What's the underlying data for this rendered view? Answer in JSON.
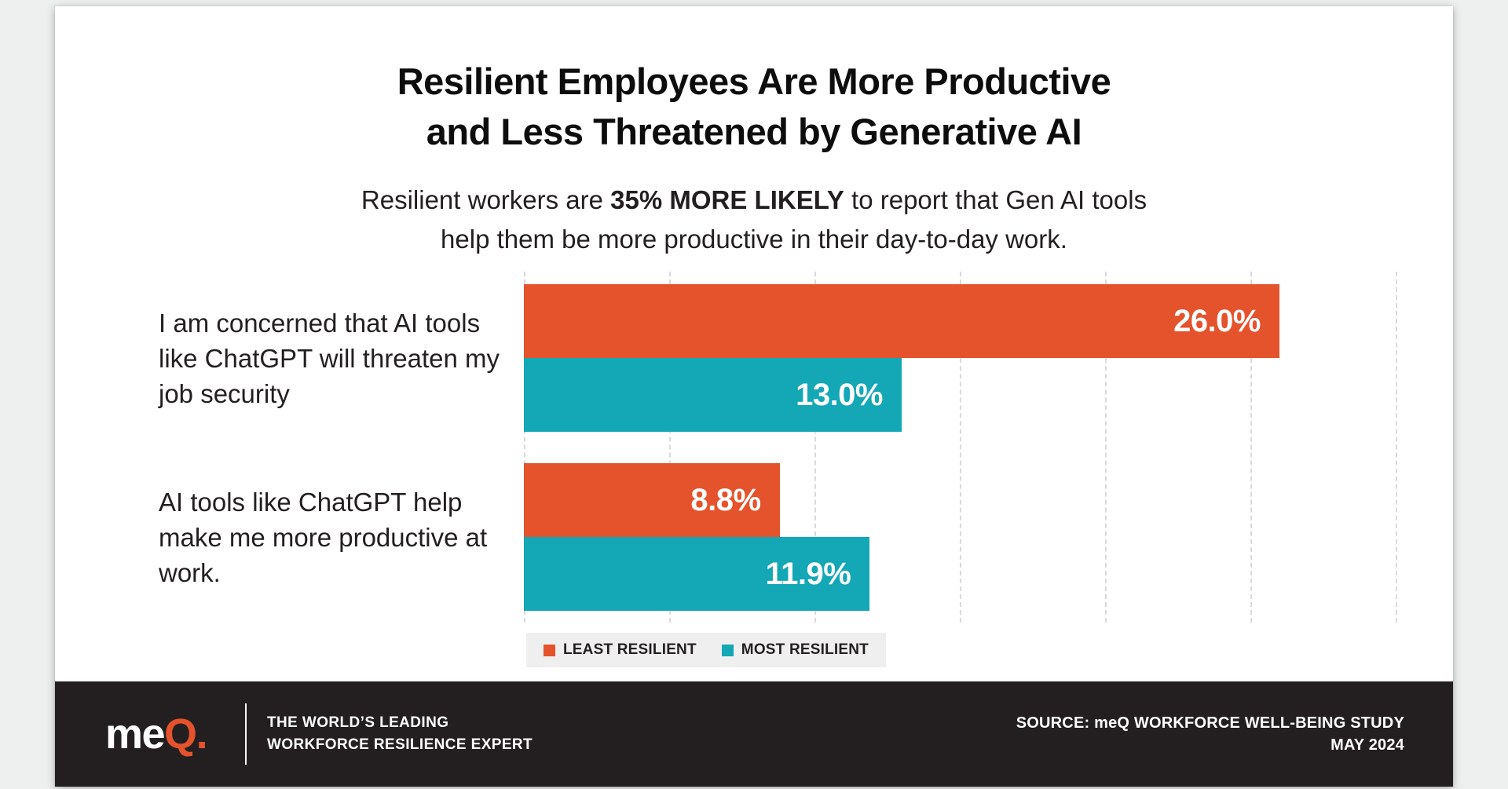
{
  "title": {
    "line1": "Resilient Employees Are More Productive",
    "line2": "and Less Threatened by Generative AI"
  },
  "subtitle": {
    "prefix": "Resilient workers are ",
    "bold": "35% MORE LIKELY",
    "suffix": " to report that Gen AI tools",
    "line2": "help them be more productive in their day-to-day work."
  },
  "chart_data": {
    "type": "bar",
    "orientation": "horizontal",
    "title": "Resilient Employees Are More Productive and Less Threatened by Generative AI",
    "categories": [
      "I am concerned that AI tools like ChatGPT will threaten my job security",
      "AI tools like ChatGPT help make me more productive at work."
    ],
    "categories_lines": [
      [
        "I am concerned that AI tools",
        "like ChatGPT will threaten my",
        "job security"
      ],
      [
        "AI tools like ChatGPT help",
        "make me more productive at",
        "work."
      ]
    ],
    "series": [
      {
        "name": "LEAST RESILIENT",
        "color": "#E4532C",
        "values": [
          26.0,
          8.8
        ],
        "labels": [
          "26.0%",
          "8.8%"
        ]
      },
      {
        "name": "MOST RESILIENT",
        "color": "#14A7B5",
        "values": [
          13.0,
          11.9
        ],
        "labels": [
          "13.0%",
          "11.9%"
        ]
      }
    ],
    "xlim": [
      0,
      30
    ],
    "gridline_step": 5,
    "grid": "vertical-dashed",
    "legend_position": "bottom"
  },
  "legend": [
    {
      "label": "LEAST RESILIENT",
      "color": "#E4532C"
    },
    {
      "label": "MOST RESILIENT",
      "color": "#14A7B5"
    }
  ],
  "footer": {
    "logo": {
      "me": "me",
      "q": "Q",
      "dot": "."
    },
    "tagline_line1": "THE WORLD’S LEADING",
    "tagline_line2": "WORKFORCE RESILIENCE EXPERT",
    "source_line1": "SOURCE: meQ WORKFORCE WELL-BEING STUDY",
    "source_line2": "MAY 2024"
  },
  "colors": {
    "least_resilient": "#E4532C",
    "most_resilient": "#14A7B5",
    "footer_bg": "#231F20",
    "gridline": "#dadada",
    "legend_bg": "#efefef",
    "text_dark": "#231F20"
  }
}
